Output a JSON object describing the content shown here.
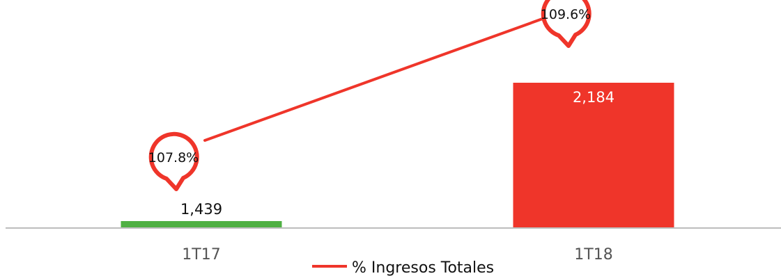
{
  "chart_data": {
    "type": "bar",
    "categories": [
      "1T17",
      "1T18"
    ],
    "bars": {
      "values": [
        1439,
        2184
      ],
      "labels": [
        "1,439",
        "2,184"
      ],
      "colors": [
        "#4fb043",
        "#ef352a"
      ]
    },
    "line": {
      "name": "% Ingresos Totales",
      "values": [
        107.8,
        109.6
      ],
      "labels": [
        "107.8%",
        "109.6%"
      ],
      "color": "#ef352a"
    },
    "legend_position": "bottom"
  }
}
